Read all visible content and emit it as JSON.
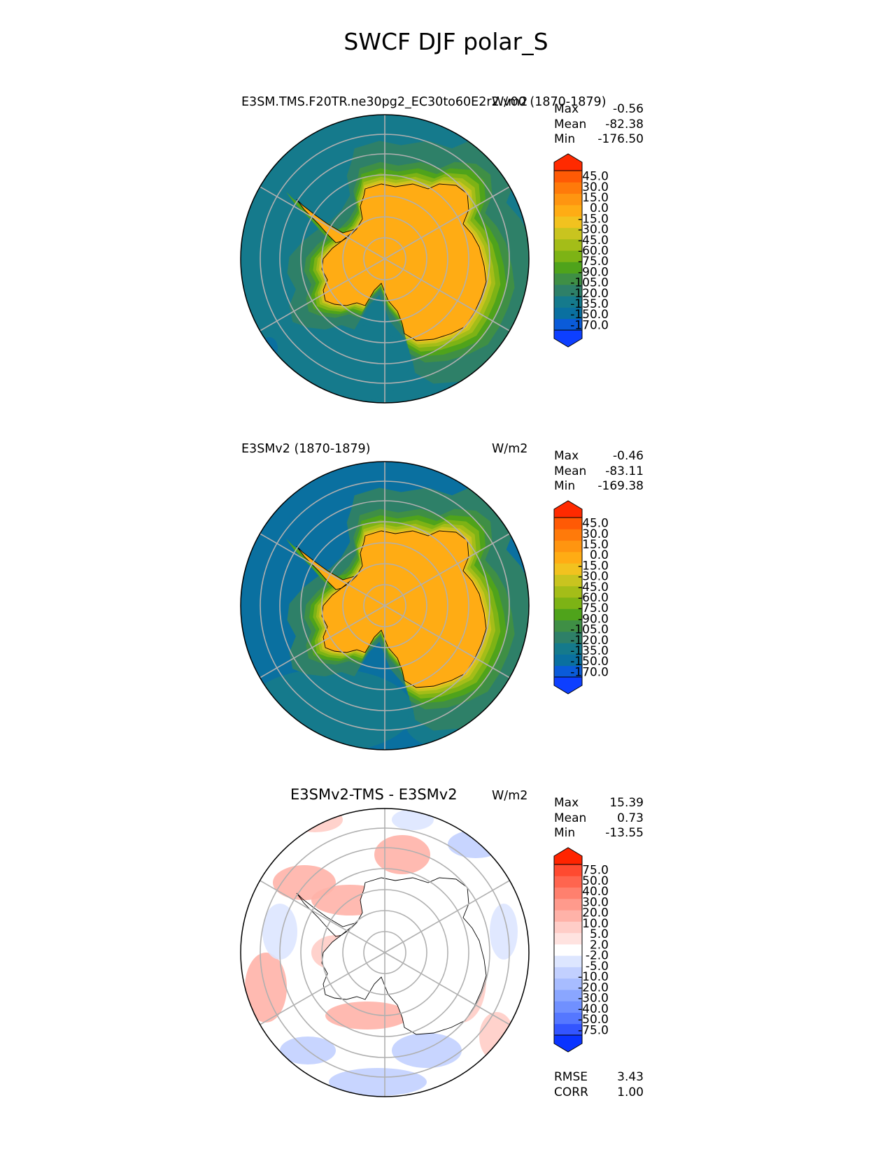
{
  "figure_title": "SWCF DJF polar_S",
  "panels": [
    {
      "title": "E3SM.TMS.F20TR.ne30pg2_EC30to60E2r2.v00 (1870-1879)",
      "units": "W/m2",
      "stats": [
        {
          "label": "Max",
          "value": "-0.56"
        },
        {
          "label": "Mean",
          "value": "-82.38"
        },
        {
          "label": "Min",
          "value": "-176.50"
        }
      ]
    },
    {
      "title": "E3SMv2 (1870-1879)",
      "units": "W/m2",
      "stats": [
        {
          "label": "Max",
          "value": "-0.46"
        },
        {
          "label": "Mean",
          "value": "-83.11"
        },
        {
          "label": "Min",
          "value": "-169.38"
        }
      ]
    },
    {
      "title": "E3SMv2-TMS - E3SMv2",
      "units": "W/m2",
      "stats": [
        {
          "label": "Max",
          "value": "15.39"
        },
        {
          "label": "Mean",
          "value": "0.73"
        },
        {
          "label": "Min",
          "value": "-13.55"
        }
      ],
      "metrics": [
        {
          "label": "RMSE",
          "value": "3.43"
        },
        {
          "label": "CORR",
          "value": "1.00"
        }
      ]
    }
  ],
  "chart_data": [
    {
      "type": "heatmap",
      "projection": "south polar stereographic",
      "title": "E3SM.TMS.F20TR.ne30pg2_EC30to60E2r2.v00 (1870-1879)",
      "units": "W/m2",
      "colorbar": {
        "levels": [
          "-170.0",
          "-150.0",
          "-135.0",
          "-120.0",
          "-105.0",
          "-90.0",
          "-75.0",
          "-60.0",
          "-45.0",
          "-30.0",
          "-15.0",
          "0.0",
          "15.0",
          "30.0",
          "45.0"
        ],
        "colors": [
          "#0d3fff",
          "#0a5bd9",
          "#0a70a0",
          "#157a8c",
          "#2e8068",
          "#3f8f45",
          "#4fa31b",
          "#7db315",
          "#a4bd18",
          "#c9c41f",
          "#f2c21f",
          "#ffac14",
          "#ff9510",
          "#ff7a0a",
          "#ff5a05",
          "#ff2a00"
        ]
      },
      "field": {
        "land_value": -15,
        "coast_band": [
          -105,
          -15
        ],
        "ring1": -120,
        "ocean": -135,
        "outer_min": -150
      },
      "stats": {
        "max": -0.56,
        "mean": -82.38,
        "min": -176.5
      },
      "grid": true
    },
    {
      "type": "heatmap",
      "projection": "south polar stereographic",
      "title": "E3SMv2 (1870-1879)",
      "units": "W/m2",
      "colorbar": {
        "levels": [
          "-170.0",
          "-150.0",
          "-135.0",
          "-120.0",
          "-105.0",
          "-90.0",
          "-75.0",
          "-60.0",
          "-45.0",
          "-30.0",
          "-15.0",
          "0.0",
          "15.0",
          "30.0",
          "45.0"
        ],
        "colors": [
          "#0d3fff",
          "#0a5bd9",
          "#0a70a0",
          "#157a8c",
          "#2e8068",
          "#3f8f45",
          "#4fa31b",
          "#7db315",
          "#a4bd18",
          "#c9c41f",
          "#f2c21f",
          "#ffac14",
          "#ff9510",
          "#ff7a0a",
          "#ff5a05",
          "#ff2a00"
        ]
      },
      "field": {
        "land_value": -15,
        "coast_band": [
          -105,
          -15
        ],
        "ring1": -120,
        "ocean": -140,
        "outer_min": -150
      },
      "stats": {
        "max": -0.46,
        "mean": -83.11,
        "min": -169.38
      },
      "grid": true
    },
    {
      "type": "heatmap",
      "projection": "south polar stereographic",
      "title": "E3SMv2-TMS - E3SMv2",
      "units": "W/m2",
      "colorbar": {
        "levels": [
          "-75.0",
          "-50.0",
          "-40.0",
          "-30.0",
          "-20.0",
          "-10.0",
          "-5.0",
          "-2.0",
          "2.0",
          "5.0",
          "10.0",
          "20.0",
          "30.0",
          "40.0",
          "50.0",
          "75.0"
        ],
        "colors": [
          "#0a33ff",
          "#3355ff",
          "#5577ff",
          "#7090ff",
          "#8aa6ff",
          "#a7bcff",
          "#c2d0ff",
          "#dde6ff",
          "#ffffff",
          "#ffe3e0",
          "#ffcdc7",
          "#ffb2a8",
          "#ff9a8c",
          "#ff806e",
          "#ff654f",
          "#ff4a30",
          "#ff2400"
        ]
      },
      "field": {
        "land_value": 0,
        "anomaly_patches": true
      },
      "stats": {
        "max": 15.39,
        "mean": 0.73,
        "min": -13.55
      },
      "metrics": {
        "rmse": 3.43,
        "corr": 1.0
      },
      "grid": true
    }
  ]
}
